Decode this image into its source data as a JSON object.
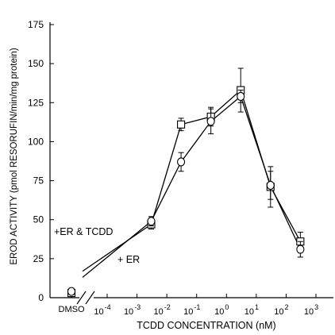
{
  "chart_data": {
    "type": "line",
    "xlabel": "TCDD CONCENTRATION (nM)",
    "ylabel": "EROD ACTIVITY (pmol RESORUFIN/min/mg protein)",
    "x_scale": "log",
    "xlim": [
      1e-05,
      1000
    ],
    "ylim": [
      0,
      175
    ],
    "y_ticks": [
      "0",
      "25",
      "50",
      "75",
      "100",
      "125",
      "150",
      "175"
    ],
    "x_ticks": [
      {
        "base": "10",
        "exp": "-4"
      },
      {
        "base": "10",
        "exp": "-3"
      },
      {
        "base": "10",
        "exp": "-2"
      },
      {
        "base": "10",
        "exp": "-1"
      },
      {
        "base": "10",
        "exp": "0"
      },
      {
        "base": "10",
        "exp": "1"
      },
      {
        "base": "10",
        "exp": "2"
      },
      {
        "base": "10",
        "exp": "3"
      }
    ],
    "dmso_label": "DMSO",
    "series": [
      {
        "name": "+ER & TCDD",
        "marker": "square",
        "dmso": {
          "y": 3,
          "err": 2
        },
        "x": [
          0.003,
          0.03,
          0.3,
          3,
          30,
          300
        ],
        "y": [
          47,
          111,
          116,
          133,
          71,
          36
        ],
        "err": [
          3,
          4,
          6,
          14,
          13,
          6
        ]
      },
      {
        "name": "+ ER",
        "marker": "circle",
        "dmso": {
          "y": 4,
          "err": 2
        },
        "x": [
          0.003,
          0.03,
          0.3,
          3,
          30,
          300
        ],
        "y": [
          49,
          87,
          113,
          129,
          72,
          31
        ],
        "err": [
          3,
          6,
          8,
          4,
          9,
          5
        ]
      }
    ]
  }
}
